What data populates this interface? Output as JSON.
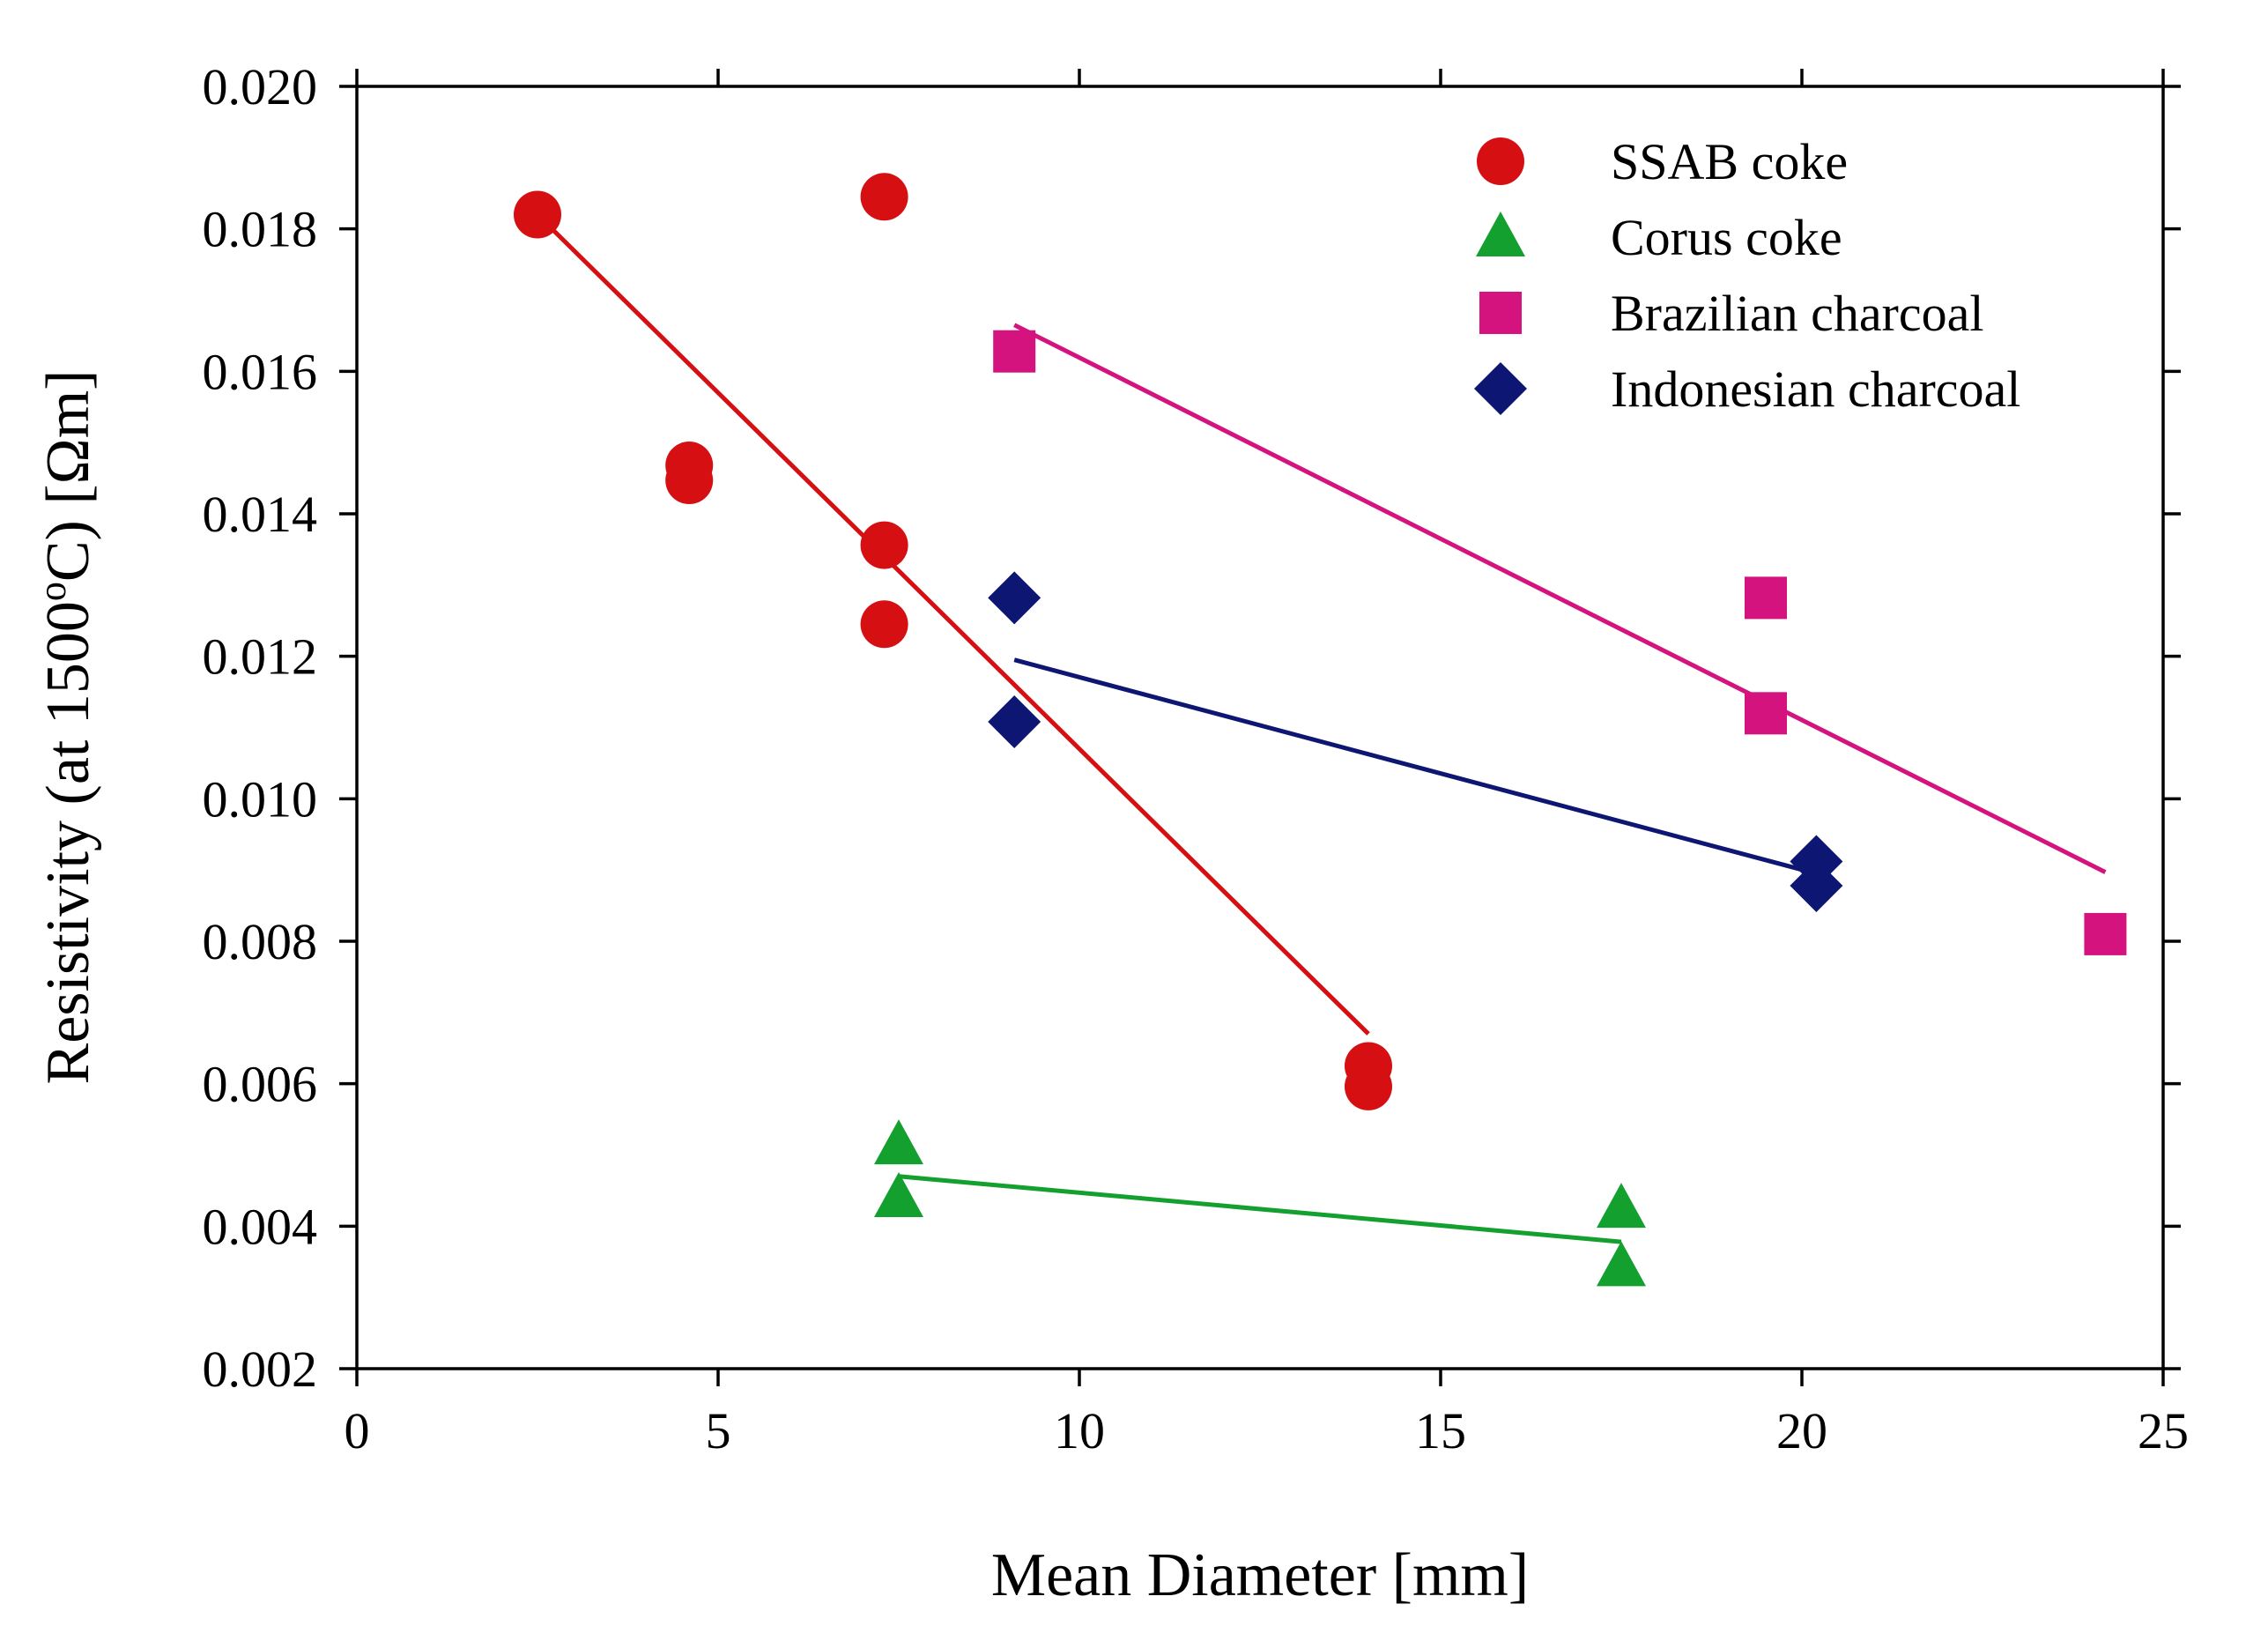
{
  "chart_data": {
    "type": "scatter",
    "title": "",
    "xlabel": "Mean Diameter [mm]",
    "ylabel": {
      "prefix": "Resistivity (at 1500",
      "superscript": "o",
      "suffix": "C) [Ωm]"
    },
    "xlim": [
      0,
      25
    ],
    "ylim": [
      0.002,
      0.02
    ],
    "x_ticks": [
      {
        "value": 0,
        "label": "0"
      },
      {
        "value": 5,
        "label": "5"
      },
      {
        "value": 10,
        "label": "10"
      },
      {
        "value": 15,
        "label": "15"
      },
      {
        "value": 20,
        "label": "20"
      },
      {
        "value": 25,
        "label": "25"
      }
    ],
    "y_ticks": [
      {
        "value": 0.002,
        "label": "0.002"
      },
      {
        "value": 0.004,
        "label": "0.004"
      },
      {
        "value": 0.006,
        "label": "0.006"
      },
      {
        "value": 0.008,
        "label": "0.008"
      },
      {
        "value": 0.01,
        "label": "0.010"
      },
      {
        "value": 0.012,
        "label": "0.012"
      },
      {
        "value": 0.014,
        "label": "0.014"
      },
      {
        "value": 0.016,
        "label": "0.016"
      },
      {
        "value": 0.018,
        "label": "0.018"
      },
      {
        "value": 0.02,
        "label": "0.020"
      }
    ],
    "grid": false,
    "legend_position": "top-right",
    "series": [
      {
        "name": "SSAB coke",
        "marker": "circle",
        "color": "#d50f12",
        "points": [
          {
            "x": 2.5,
            "y": 0.0182
          },
          {
            "x": 7.3,
            "y": 0.01845
          },
          {
            "x": 4.6,
            "y": 0.01468
          },
          {
            "x": 4.6,
            "y": 0.01447
          },
          {
            "x": 7.3,
            "y": 0.01356
          },
          {
            "x": 7.3,
            "y": 0.01245
          },
          {
            "x": 14.0,
            "y": 0.00625
          },
          {
            "x": 14.0,
            "y": 0.00596
          }
        ],
        "fit": [
          {
            "x": 2.5,
            "y": 0.0182
          },
          {
            "x": 14.0,
            "y": 0.0067
          }
        ]
      },
      {
        "name": "Corus coke",
        "marker": "triangle",
        "color": "#13a02e",
        "points": [
          {
            "x": 7.5,
            "y": 0.00514
          },
          {
            "x": 7.5,
            "y": 0.0044
          },
          {
            "x": 17.5,
            "y": 0.00425
          },
          {
            "x": 17.5,
            "y": 0.00343
          }
        ],
        "fit": [
          {
            "x": 7.5,
            "y": 0.0047
          },
          {
            "x": 17.5,
            "y": 0.00378
          }
        ]
      },
      {
        "name": "Brazilian charcoal",
        "marker": "square",
        "color": "#d5137f",
        "points": [
          {
            "x": 9.1,
            "y": 0.01628
          },
          {
            "x": 19.5,
            "y": 0.01282
          },
          {
            "x": 19.5,
            "y": 0.0112
          },
          {
            "x": 24.2,
            "y": 0.0081
          }
        ],
        "fit": [
          {
            "x": 9.1,
            "y": 0.01665
          },
          {
            "x": 24.2,
            "y": 0.00897
          }
        ]
      },
      {
        "name": "Indonesian charcoal",
        "marker": "diamond",
        "color": "#0d1773",
        "points": [
          {
            "x": 9.1,
            "y": 0.01282
          },
          {
            "x": 9.1,
            "y": 0.01108
          },
          {
            "x": 20.2,
            "y": 0.00912
          },
          {
            "x": 20.2,
            "y": 0.00878
          }
        ],
        "fit": [
          {
            "x": 9.1,
            "y": 0.01195
          },
          {
            "x": 20.2,
            "y": 0.00895
          }
        ]
      }
    ]
  }
}
